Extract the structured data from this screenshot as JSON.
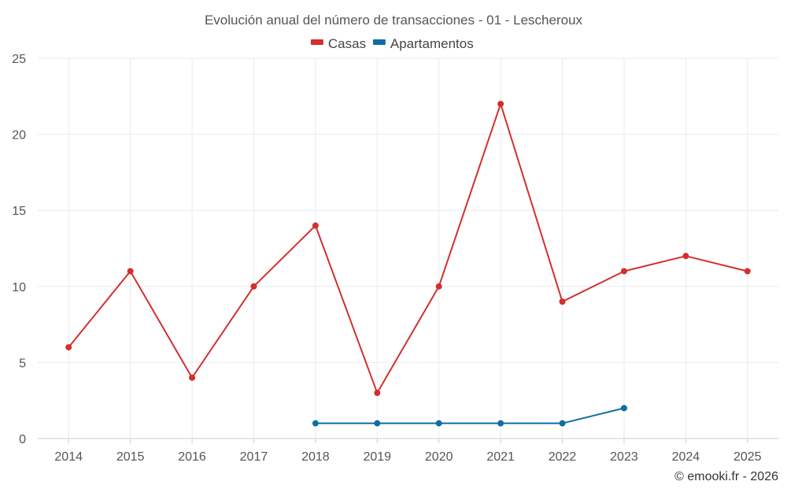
{
  "chart_data": {
    "type": "line",
    "title": "Evolución anual del número de transacciones - 01 - Lescheroux",
    "xlabel": "",
    "ylabel": "",
    "categories": [
      "2014",
      "2015",
      "2016",
      "2017",
      "2018",
      "2019",
      "2020",
      "2021",
      "2022",
      "2023",
      "2024",
      "2025"
    ],
    "ylim": [
      0,
      25
    ],
    "yticks": [
      0,
      5,
      10,
      15,
      20,
      25
    ],
    "grid": true,
    "legend_position": "top-center",
    "series": [
      {
        "name": "Casas",
        "color": "#d32f2f",
        "values": [
          6,
          11,
          4,
          10,
          14,
          3,
          10,
          22,
          9,
          11,
          12,
          11
        ]
      },
      {
        "name": "Apartamentos",
        "color": "#0d6ea3",
        "values": [
          null,
          null,
          null,
          null,
          1,
          1,
          1,
          1,
          1,
          2,
          null,
          null
        ]
      }
    ],
    "credit": "© emooki.fr - 2026"
  }
}
